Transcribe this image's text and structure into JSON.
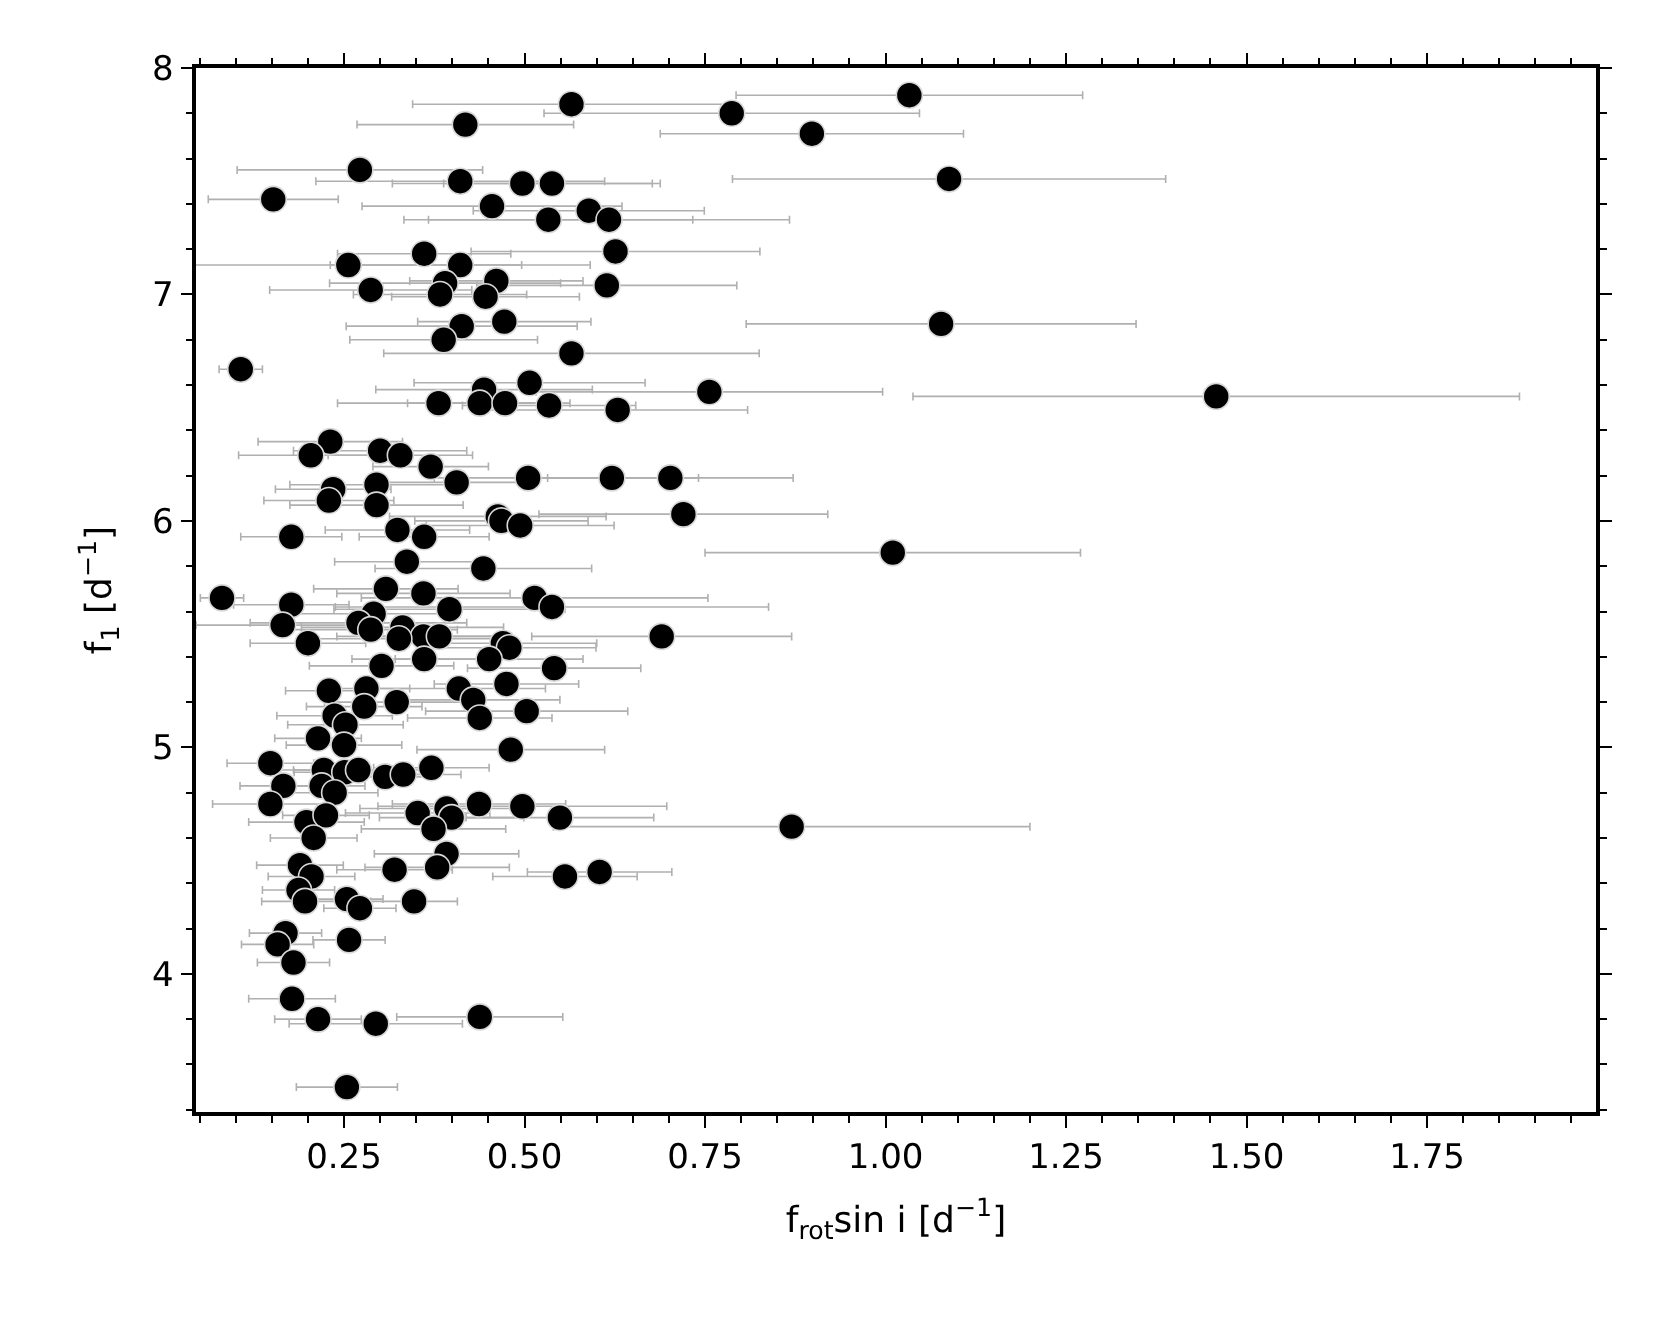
{
  "chart_data": {
    "type": "scatter",
    "xlabel": "f$_{rot}$sin i [d$^{−1}$]",
    "ylabel": "f$_{1}$ [d$^{−1}$]",
    "xlim": [
      0.045,
      1.984
    ],
    "ylim": [
      3.39,
      8.0
    ],
    "xticks": [
      0.25,
      {
        "value": 0.5,
        "label": "0.50"
      },
      0.75,
      {
        "value": 1.0,
        "label": "1.00"
      },
      1.25,
      {
        "value": 1.5,
        "label": "1.50"
      },
      1.75
    ],
    "yticks": [
      4,
      5,
      6,
      7,
      8
    ],
    "marker": "circle",
    "series": [
      {
        "color": "#000000",
        "x": [
          0.565,
          0.418,
          0.272,
          0.411,
          0.497,
          0.538,
          0.152,
          0.455,
          0.533,
          0.589,
          0.617,
          0.361,
          0.626,
          0.256,
          0.411,
          0.461,
          0.39,
          0.287,
          0.383,
          0.446,
          0.614,
          0.413,
          0.472,
          0.388,
          0.565,
          0.107,
          0.507,
          0.444,
          0.756,
          0.381,
          0.438,
          0.473,
          0.534,
          0.629,
          1.033,
          0.787,
          0.898,
          1.088,
          1.077,
          1.458,
          1.01,
          0.87,
          0.231,
          0.204,
          0.3,
          0.328,
          0.37,
          0.505,
          0.621,
          0.702,
          0.235,
          0.295,
          0.406,
          0.229,
          0.295,
          0.463,
          0.468,
          0.494,
          0.72,
          0.177,
          0.324,
          0.361,
          0.337,
          0.443,
          0.308,
          0.36,
          0.081,
          0.177,
          0.514,
          0.538,
          0.396,
          0.291,
          0.27,
          0.165,
          0.331,
          0.287,
          0.36,
          0.382,
          0.326,
          0.47,
          0.479,
          0.69,
          0.2,
          0.361,
          0.451,
          0.302,
          0.541,
          0.475,
          0.229,
          0.281,
          0.409,
          0.429,
          0.323,
          0.278,
          0.503,
          0.438,
          0.237,
          0.252,
          0.214,
          0.25,
          0.481,
          0.148,
          0.222,
          0.251,
          0.27,
          0.307,
          0.332,
          0.371,
          0.166,
          0.219,
          0.237,
          0.148,
          0.198,
          0.225,
          0.208,
          0.352,
          0.392,
          0.399,
          0.374,
          0.437,
          0.497,
          0.549,
          0.392,
          0.189,
          0.205,
          0.32,
          0.379,
          0.556,
          0.604,
          0.187,
          0.196,
          0.254,
          0.272,
          0.347,
          0.169,
          0.158,
          0.257,
          0.18,
          0.178,
          0.214,
          0.294,
          0.438,
          0.254
        ],
        "values": [
          7.84,
          7.75,
          7.55,
          7.5,
          7.49,
          7.49,
          7.42,
          7.39,
          7.33,
          7.37,
          7.33,
          7.18,
          7.19,
          7.13,
          7.13,
          7.06,
          7.05,
          7.02,
          7.0,
          6.99,
          7.04,
          6.86,
          6.88,
          6.8,
          6.74,
          6.67,
          6.61,
          6.58,
          6.57,
          6.52,
          6.52,
          6.52,
          6.51,
          6.49,
          7.88,
          7.8,
          7.71,
          7.51,
          6.87,
          6.55,
          5.86,
          4.65,
          6.35,
          6.29,
          6.31,
          6.29,
          6.24,
          6.19,
          6.19,
          6.19,
          6.14,
          6.16,
          6.17,
          6.09,
          6.07,
          6.02,
          6.0,
          5.98,
          6.03,
          5.93,
          5.96,
          5.93,
          5.82,
          5.79,
          5.7,
          5.68,
          5.66,
          5.63,
          5.66,
          5.62,
          5.61,
          5.59,
          5.55,
          5.54,
          5.53,
          5.52,
          5.49,
          5.49,
          5.48,
          5.46,
          5.44,
          5.49,
          5.46,
          5.39,
          5.39,
          5.36,
          5.35,
          5.28,
          5.25,
          5.26,
          5.26,
          5.21,
          5.2,
          5.18,
          5.16,
          5.13,
          5.14,
          5.1,
          5.04,
          5.01,
          4.99,
          4.93,
          4.9,
          4.89,
          4.9,
          4.87,
          4.88,
          4.91,
          4.83,
          4.83,
          4.8,
          4.75,
          4.67,
          4.7,
          4.6,
          4.71,
          4.73,
          4.69,
          4.64,
          4.75,
          4.74,
          4.69,
          4.53,
          4.48,
          4.43,
          4.46,
          4.47,
          4.43,
          4.45,
          4.37,
          4.32,
          4.33,
          4.29,
          4.32,
          4.18,
          4.13,
          4.15,
          4.05,
          3.89,
          3.8,
          3.78,
          3.81,
          3.5
        ],
        "xerrors": [
          0.22,
          0.15,
          0.17,
          0.2,
          0.18,
          0.15,
          0.09,
          0.18,
          0.2,
          0.16,
          0.25,
          0.12,
          0.2,
          0.24,
          0.18,
          0.12,
          0.16,
          0.14,
          0.12,
          0.13,
          0.18,
          0.16,
          0.12,
          0.13,
          0.26,
          0.03,
          0.16,
          0.15,
          0.24,
          0.14,
          0.1,
          0.09,
          0.12,
          0.18,
          0.24,
          0.26,
          0.21,
          0.3,
          0.27,
          0.42,
          0.26,
          0.33,
          0.1,
          0.1,
          0.12,
          0.1,
          0.08,
          0.13,
          0.12,
          0.17,
          0.08,
          0.12,
          0.1,
          0.09,
          0.12,
          0.15,
          0.12,
          0.13,
          0.2,
          0.07,
          0.1,
          0.09,
          0.1,
          0.15,
          0.1,
          0.12,
          0.03,
          0.08,
          0.24,
          0.3,
          0.16,
          0.12,
          0.15,
          0.12,
          0.14,
          0.12,
          0.12,
          0.1,
          0.13,
          0.13,
          0.12,
          0.18,
          0.08,
          0.1,
          0.13,
          0.1,
          0.12,
          0.1,
          0.06,
          0.06,
          0.12,
          0.12,
          0.1,
          0.08,
          0.14,
          0.1,
          0.08,
          0.08,
          0.06,
          0.08,
          0.13,
          0.06,
          0.06,
          0.07,
          0.09,
          0.06,
          0.08,
          0.08,
          0.06,
          0.06,
          0.06,
          0.08,
          0.08,
          0.06,
          0.06,
          0.1,
          0.12,
          0.1,
          0.1,
          0.12,
          0.2,
          0.13,
          0.1,
          0.06,
          0.06,
          0.08,
          0.1,
          0.1,
          0.1,
          0.05,
          0.06,
          0.05,
          0.05,
          0.06,
          0.05,
          0.05,
          0.05,
          0.05,
          0.06,
          0.06,
          0.12,
          0.115,
          0.07
        ]
      }
    ]
  }
}
